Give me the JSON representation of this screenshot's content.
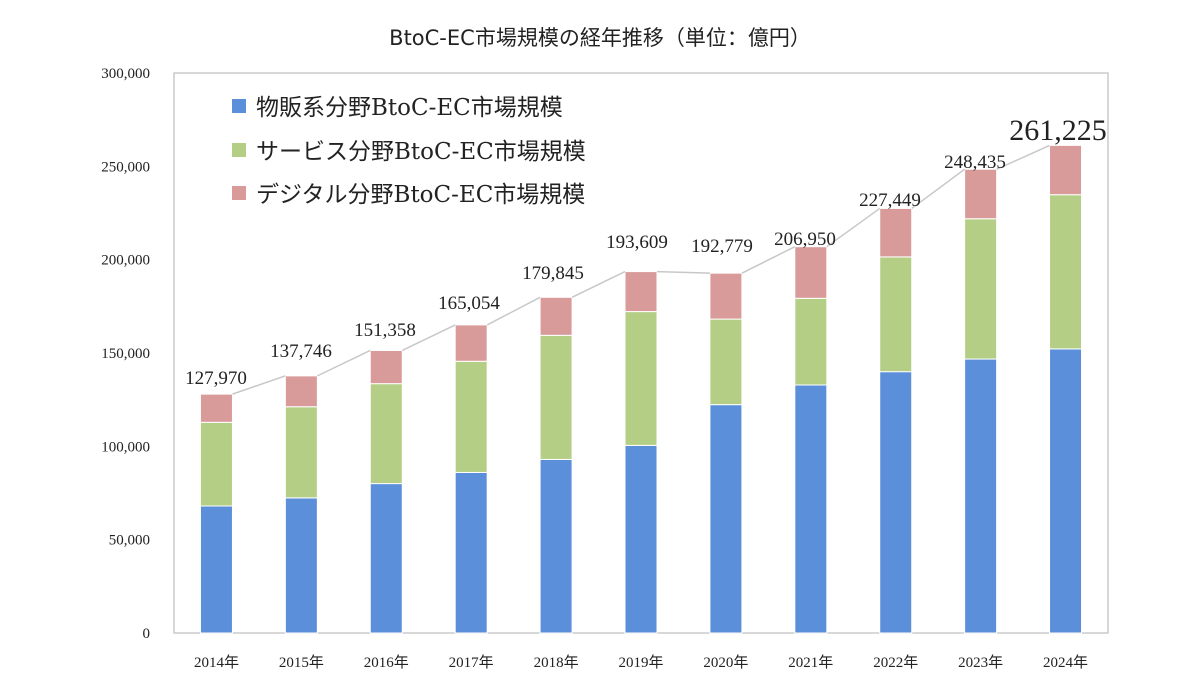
{
  "chart_data": {
    "type": "bar",
    "stacked": true,
    "title": "BtoC-EC市場規模の経年推移（単位：億円）",
    "categories": [
      "2014年",
      "2015年",
      "2016年",
      "2017年",
      "2018年",
      "2019年",
      "2020年",
      "2021年",
      "2022年",
      "2023年",
      "2024年"
    ],
    "series": [
      {
        "name": "物販系分野BtoC-EC市場規模",
        "color": "#5B8FD9",
        "values": [
          68042,
          72398,
          80043,
          86008,
          92992,
          100515,
          122333,
          132865,
          139997,
          146760,
          152194
        ]
      },
      {
        "name": "サービス分野BtoC-EC市場規模",
        "color": "#B5CE85",
        "values": [
          44816,
          48818,
          53532,
          59568,
          66471,
          71672,
          45832,
          46424,
          61477,
          75169,
          82612
        ]
      },
      {
        "name": "デジタル分野BtoC-EC市場規模",
        "color": "#D99A9A",
        "values": [
          15111,
          16531,
          17782,
          19478,
          20382,
          21422,
          24614,
          27661,
          25975,
          26506,
          26419
        ]
      }
    ],
    "totals": [
      127970,
      137746,
      151358,
      165054,
      179845,
      193609,
      192779,
      206950,
      227449,
      248435,
      261225
    ],
    "total_labels": [
      "127,970",
      "137,746",
      "151,358",
      "165,054",
      "179,845",
      "193,609",
      "192,779",
      "206,950",
      "227,449",
      "248,435",
      "261,225"
    ],
    "yticks": [
      "0",
      "50,000",
      "100,000",
      "150,000",
      "200,000",
      "250,000",
      "300,000"
    ],
    "ylim": [
      0,
      300000
    ],
    "grid": false,
    "legend_position": "top-left",
    "line_color": "#C8C8C8"
  }
}
